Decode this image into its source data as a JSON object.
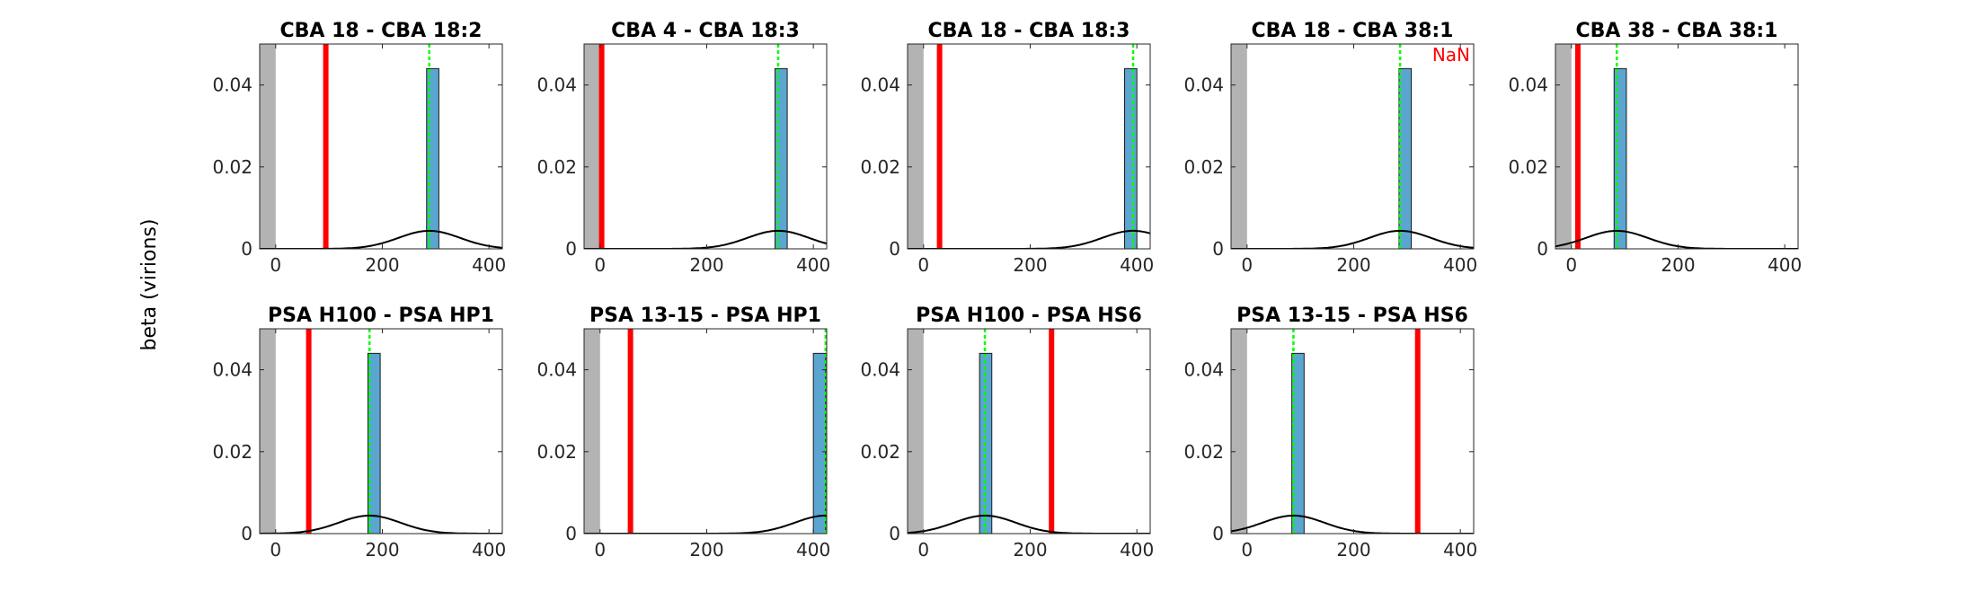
{
  "figure": {
    "ylabel": "beta (virions)"
  },
  "colors": {
    "hist_fill": "#5aa6d1",
    "hist_edge": "#1a1a1a",
    "observed_line": "#ff0000",
    "mean_line": "#00ff00",
    "shade": "#b3b3b3",
    "curve": "#000000",
    "annotation": "#ff0000"
  },
  "chart_data": [
    {
      "type": "bar",
      "title": "CBA 18 - CBA 18:2",
      "xlim": [
        -30,
        425
      ],
      "ylim": [
        0,
        0.05
      ],
      "xticks": [
        0,
        200,
        400
      ],
      "yticks": [
        0,
        0.02,
        0.04
      ],
      "yticklabels": [
        "0",
        "0.02",
        "0.04"
      ],
      "hist_bins": [
        [
          283,
          306
        ]
      ],
      "hist_heights": [
        0.044
      ],
      "observed_line": 94,
      "mean_line": 288,
      "curve": {
        "mean": 288,
        "sd": 58,
        "peak": 0.0044
      },
      "shaded_region": [
        -30,
        0
      ],
      "annotation": ""
    },
    {
      "type": "bar",
      "title": "CBA 4 - CBA 18:3",
      "xlim": [
        -30,
        425
      ],
      "ylim": [
        0,
        0.05
      ],
      "xticks": [
        0,
        200,
        400
      ],
      "yticks": [
        0,
        0.02,
        0.04
      ],
      "yticklabels": [
        "0",
        "0.02",
        "0.04"
      ],
      "hist_bins": [
        [
          328,
          351
        ]
      ],
      "hist_heights": [
        0.044
      ],
      "observed_line": 3,
      "mean_line": 334,
      "curve": {
        "mean": 334,
        "sd": 58,
        "peak": 0.0044
      },
      "shaded_region": [
        -30,
        0
      ],
      "annotation": ""
    },
    {
      "type": "bar",
      "title": "CBA 18 - CBA 18:3",
      "xlim": [
        -30,
        425
      ],
      "ylim": [
        0,
        0.05
      ],
      "xticks": [
        0,
        200,
        400
      ],
      "yticks": [
        0,
        0.02,
        0.04
      ],
      "yticklabels": [
        "0",
        "0.02",
        "0.04"
      ],
      "hist_bins": [
        [
          377,
          400
        ]
      ],
      "hist_heights": [
        0.044
      ],
      "observed_line": 30,
      "mean_line": 393,
      "curve": {
        "mean": 393,
        "sd": 58,
        "peak": 0.0044
      },
      "shaded_region": [
        -30,
        0
      ],
      "annotation": ""
    },
    {
      "type": "bar",
      "title": "CBA 18 - CBA 38:1",
      "xlim": [
        -30,
        425
      ],
      "ylim": [
        0,
        0.05
      ],
      "xticks": [
        0,
        200,
        400
      ],
      "yticks": [
        0,
        0.02,
        0.04
      ],
      "yticklabels": [
        "0",
        "0.02",
        "0.04"
      ],
      "hist_bins": [
        [
          285,
          308
        ]
      ],
      "hist_heights": [
        0.044
      ],
      "observed_line": null,
      "mean_line": 287,
      "curve": {
        "mean": 287,
        "sd": 58,
        "peak": 0.0044
      },
      "shaded_region": [
        -30,
        0
      ],
      "annotation": "NaN"
    },
    {
      "type": "bar",
      "title": "CBA 38 - CBA 38:1",
      "xlim": [
        -30,
        425
      ],
      "ylim": [
        0,
        0.05
      ],
      "xticks": [
        0,
        200,
        400
      ],
      "yticks": [
        0,
        0.02,
        0.04
      ],
      "yticklabels": [
        "0",
        "0.02",
        "0.04"
      ],
      "hist_bins": [
        [
          80,
          103
        ]
      ],
      "hist_heights": [
        0.044
      ],
      "observed_line": 12,
      "mean_line": 85,
      "curve": {
        "mean": 85,
        "sd": 58,
        "peak": 0.0044
      },
      "shaded_region": [
        -30,
        0
      ],
      "annotation": ""
    },
    {
      "type": "bar",
      "title": "PSA H100 - PSA HP1",
      "xlim": [
        -30,
        425
      ],
      "ylim": [
        0,
        0.05
      ],
      "xticks": [
        0,
        200,
        400
      ],
      "yticks": [
        0,
        0.02,
        0.04
      ],
      "yticklabels": [
        "0",
        "0.02",
        "0.04"
      ],
      "hist_bins": [
        [
          173,
          196
        ]
      ],
      "hist_heights": [
        0.044
      ],
      "observed_line": 62,
      "mean_line": 176,
      "curve": {
        "mean": 176,
        "sd": 58,
        "peak": 0.0044
      },
      "shaded_region": [
        -30,
        0
      ],
      "annotation": ""
    },
    {
      "type": "bar",
      "title": "PSA 13-15 - PSA HP1",
      "xlim": [
        -30,
        425
      ],
      "ylim": [
        0,
        0.05
      ],
      "xticks": [
        0,
        200,
        400
      ],
      "yticks": [
        0,
        0.02,
        0.04
      ],
      "yticklabels": [
        "0",
        "0.02",
        "0.04"
      ],
      "hist_bins": [
        [
          400,
          423
        ]
      ],
      "hist_heights": [
        0.044
      ],
      "observed_line": 57,
      "mean_line": 423,
      "curve": {
        "mean": 423,
        "sd": 58,
        "peak": 0.0044
      },
      "shaded_region": [
        -30,
        0
      ],
      "annotation": ""
    },
    {
      "type": "bar",
      "title": "PSA H100 - PSA HS6",
      "xlim": [
        -30,
        425
      ],
      "ylim": [
        0,
        0.05
      ],
      "xticks": [
        0,
        200,
        400
      ],
      "yticks": [
        0,
        0.02,
        0.04
      ],
      "yticklabels": [
        "0",
        "0.02",
        "0.04"
      ],
      "hist_bins": [
        [
          105,
          128
        ]
      ],
      "hist_heights": [
        0.044
      ],
      "observed_line": 240,
      "mean_line": 115,
      "curve": {
        "mean": 115,
        "sd": 58,
        "peak": 0.0044
      },
      "shaded_region": [
        -30,
        0
      ],
      "annotation": ""
    },
    {
      "type": "bar",
      "title": "PSA 13-15 - PSA HS6",
      "xlim": [
        -30,
        425
      ],
      "ylim": [
        0,
        0.05
      ],
      "xticks": [
        0,
        200,
        400
      ],
      "yticks": [
        0,
        0.02,
        0.04
      ],
      "yticklabels": [
        "0",
        "0.02",
        "0.04"
      ],
      "hist_bins": [
        [
          84,
          107
        ]
      ],
      "hist_heights": [
        0.044
      ],
      "observed_line": 320,
      "mean_line": 87,
      "curve": {
        "mean": 87,
        "sd": 58,
        "peak": 0.0044
      },
      "shaded_region": [
        -30,
        0
      ],
      "annotation": ""
    }
  ]
}
